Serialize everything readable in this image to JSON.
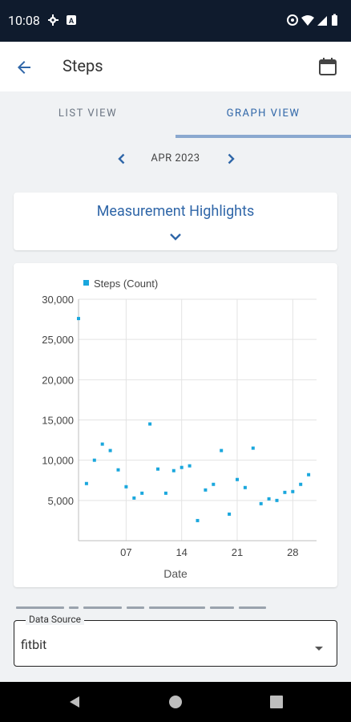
{
  "status_bar": {
    "time": "10:08"
  },
  "app_bar": {
    "title": "Steps"
  },
  "tabs": [
    {
      "label": "LIST VIEW",
      "active": false
    },
    {
      "label": "GRAPH VIEW",
      "active": true
    }
  ],
  "date_nav": {
    "month": "APR 2023"
  },
  "highlights": {
    "title": "Measurement Highlights"
  },
  "data_source": {
    "label": "Data Source",
    "value": "fitbit"
  },
  "colors": {
    "accent": "#2f66a8",
    "point": "#1aa7dd",
    "statusbar": "#0f1b2d"
  },
  "chart_data": {
    "type": "scatter",
    "legend": "Steps (Count)",
    "legend_position": "top-left",
    "xlabel": "Date",
    "ylabel": "",
    "x_ticks": [
      {
        "value": 7,
        "label": "07"
      },
      {
        "value": 14,
        "label": "14"
      },
      {
        "value": 21,
        "label": "21"
      },
      {
        "value": 28,
        "label": "28"
      }
    ],
    "y_ticks": [
      {
        "value": 5000,
        "label": "5,000"
      },
      {
        "value": 10000,
        "label": "10,000"
      },
      {
        "value": 15000,
        "label": "15,000"
      },
      {
        "value": 20000,
        "label": "20,000"
      },
      {
        "value": 25000,
        "label": "25,000"
      },
      {
        "value": 30000,
        "label": "30,000"
      }
    ],
    "xlim": [
      1,
      31
    ],
    "ylim": [
      0,
      30000
    ],
    "grid": true,
    "series": [
      {
        "name": "Steps (Count)",
        "points": [
          [
            1,
            27600
          ],
          [
            2,
            7100
          ],
          [
            3,
            10000
          ],
          [
            4,
            12000
          ],
          [
            5,
            11200
          ],
          [
            6,
            8800
          ],
          [
            7,
            6700
          ],
          [
            8,
            5300
          ],
          [
            9,
            5900
          ],
          [
            10,
            14500
          ],
          [
            11,
            8900
          ],
          [
            12,
            5900
          ],
          [
            13,
            8700
          ],
          [
            14,
            9100
          ],
          [
            15,
            9300
          ],
          [
            16,
            2500
          ],
          [
            17,
            6300
          ],
          [
            18,
            7000
          ],
          [
            19,
            11200
          ],
          [
            20,
            3300
          ],
          [
            21,
            7600
          ],
          [
            22,
            6600
          ],
          [
            23,
            11500
          ],
          [
            24,
            4600
          ],
          [
            25,
            5200
          ],
          [
            26,
            5000
          ],
          [
            27,
            6000
          ],
          [
            28,
            6100
          ],
          [
            29,
            7000
          ],
          [
            30,
            8200
          ]
        ]
      }
    ]
  }
}
